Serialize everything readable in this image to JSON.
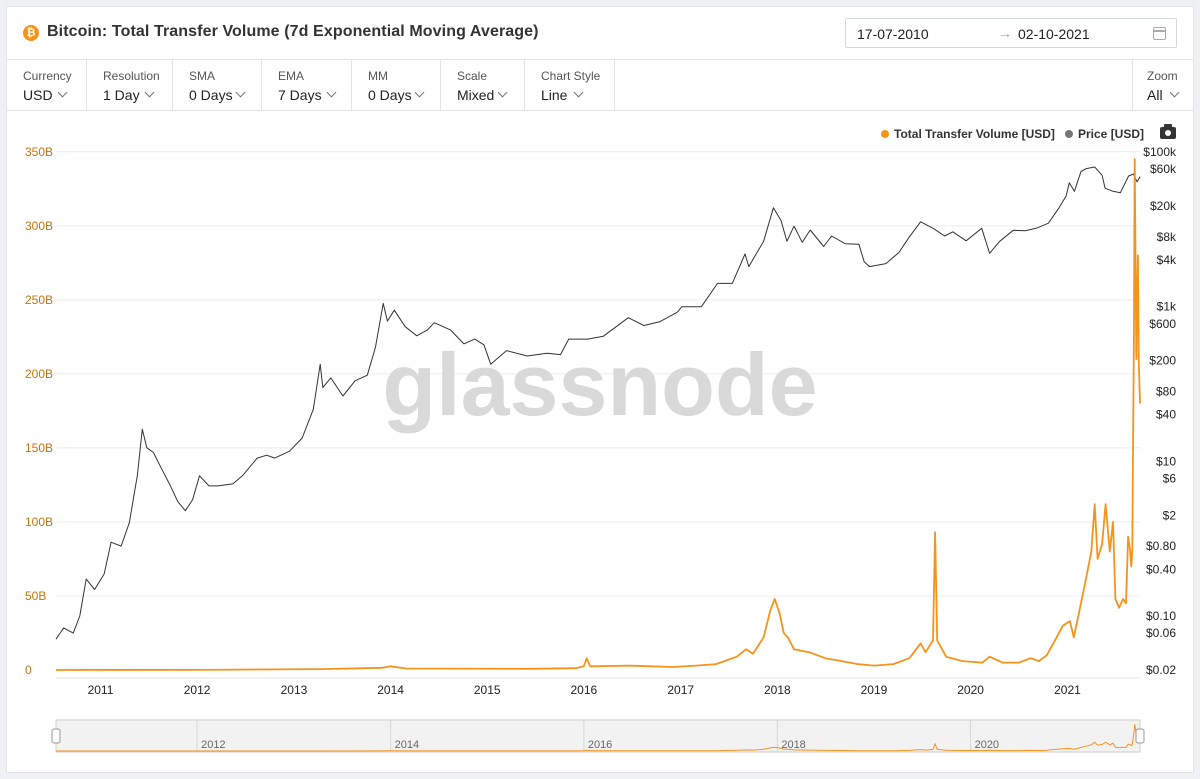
{
  "header": {
    "coin_symbol": "₿",
    "title": "Bitcoin: Total Transfer Volume (7d Exponential Moving Average)",
    "date_from": "17-07-2010",
    "date_arrow": "→",
    "date_to": "02-10-2021"
  },
  "controls": [
    {
      "label": "Currency",
      "value": "USD"
    },
    {
      "label": "Resolution",
      "value": "1 Day"
    },
    {
      "label": "SMA",
      "value": "0 Days"
    },
    {
      "label": "EMA",
      "value": "7 Days"
    },
    {
      "label": "MM",
      "value": "0 Days"
    },
    {
      "label": "Scale",
      "value": "Mixed"
    },
    {
      "label": "Chart Style",
      "value": "Line"
    }
  ],
  "zoom": {
    "label": "Zoom",
    "value": "All"
  },
  "legend": [
    {
      "name": "Total Transfer Volume [USD]",
      "color": "#f7931a"
    },
    {
      "name": "Price [USD]",
      "color": "#777777"
    }
  ],
  "watermark": "glassnode",
  "colors": {
    "volume": "#f7931a",
    "price": "#333333",
    "left_axis_text": "#c27510"
  },
  "chart_data": {
    "type": "line",
    "x_axis": {
      "ticks": [
        "2011",
        "2012",
        "2013",
        "2014",
        "2015",
        "2016",
        "2017",
        "2018",
        "2019",
        "2020",
        "2021"
      ],
      "range": [
        "2010-07-17",
        "2021-10-02"
      ]
    },
    "y_left": {
      "label": "Total Transfer Volume [USD]",
      "scale": "linear",
      "ticks": [
        "0",
        "50B",
        "100B",
        "150B",
        "200B",
        "250B",
        "300B",
        "350B"
      ],
      "range": [
        0,
        360
      ]
    },
    "y_right": {
      "label": "Price [USD]",
      "scale": "log",
      "ticks": [
        "$0.02",
        "$0.06",
        "$0.10",
        "$0.40",
        "$0.80",
        "$2",
        "$6",
        "$10",
        "$40",
        "$80",
        "$200",
        "$600",
        "$1k",
        "$4k",
        "$8k",
        "$20k",
        "$60k",
        "$100k"
      ]
    },
    "series": [
      {
        "name": "Price [USD]",
        "axis": "right",
        "points": [
          [
            "2010-07-17",
            0.05
          ],
          [
            "2010-08-15",
            0.07
          ],
          [
            "2010-09-20",
            0.06
          ],
          [
            "2010-10-15",
            0.1
          ],
          [
            "2010-11-08",
            0.3
          ],
          [
            "2010-12-10",
            0.22
          ],
          [
            "2011-01-15",
            0.35
          ],
          [
            "2011-02-10",
            0.9
          ],
          [
            "2011-03-20",
            0.8
          ],
          [
            "2011-04-20",
            1.6
          ],
          [
            "2011-05-20",
            6.5
          ],
          [
            "2011-06-08",
            26
          ],
          [
            "2011-06-25",
            15
          ],
          [
            "2011-07-20",
            13
          ],
          [
            "2011-08-20",
            8
          ],
          [
            "2011-09-20",
            5
          ],
          [
            "2011-10-20",
            3
          ],
          [
            "2011-11-18",
            2.3
          ],
          [
            "2011-12-15",
            3.2
          ],
          [
            "2012-01-10",
            6.5
          ],
          [
            "2012-02-15",
            4.8
          ],
          [
            "2012-03-20",
            4.8
          ],
          [
            "2012-05-15",
            5.1
          ],
          [
            "2012-06-20",
            6.5
          ],
          [
            "2012-08-15",
            11
          ],
          [
            "2012-09-20",
            12
          ],
          [
            "2012-10-20",
            11
          ],
          [
            "2012-12-15",
            13.5
          ],
          [
            "2013-02-01",
            20
          ],
          [
            "2013-03-15",
            47
          ],
          [
            "2013-04-10",
            180
          ],
          [
            "2013-04-20",
            90
          ],
          [
            "2013-05-20",
            120
          ],
          [
            "2013-07-05",
            70
          ],
          [
            "2013-08-20",
            110
          ],
          [
            "2013-10-05",
            130
          ],
          [
            "2013-11-05",
            300
          ],
          [
            "2013-12-04",
            1100
          ],
          [
            "2013-12-20",
            650
          ],
          [
            "2014-01-15",
            900
          ],
          [
            "2014-02-25",
            550
          ],
          [
            "2014-04-10",
            420
          ],
          [
            "2014-05-20",
            500
          ],
          [
            "2014-06-15",
            620
          ],
          [
            "2014-08-15",
            500
          ],
          [
            "2014-10-05",
            330
          ],
          [
            "2014-11-15",
            380
          ],
          [
            "2014-12-20",
            320
          ],
          [
            "2015-01-14",
            180
          ],
          [
            "2015-03-15",
            270
          ],
          [
            "2015-06-01",
            230
          ],
          [
            "2015-08-15",
            250
          ],
          [
            "2015-10-05",
            240
          ],
          [
            "2015-11-05",
            380
          ],
          [
            "2016-01-15",
            380
          ],
          [
            "2016-03-15",
            415
          ],
          [
            "2016-06-17",
            720
          ],
          [
            "2016-08-15",
            570
          ],
          [
            "2016-10-15",
            640
          ],
          [
            "2016-12-20",
            850
          ],
          [
            "2017-01-05",
            1000
          ],
          [
            "2017-03-20",
            1000
          ],
          [
            "2017-05-20",
            2000
          ],
          [
            "2017-07-15",
            2000
          ],
          [
            "2017-09-01",
            4800
          ],
          [
            "2017-09-15",
            3300
          ],
          [
            "2017-11-10",
            7000
          ],
          [
            "2017-12-17",
            19000
          ],
          [
            "2018-01-15",
            13000
          ],
          [
            "2018-02-06",
            7000
          ],
          [
            "2018-03-05",
            11000
          ],
          [
            "2018-04-05",
            6800
          ],
          [
            "2018-05-05",
            9800
          ],
          [
            "2018-06-25",
            6000
          ],
          [
            "2018-07-25",
            8200
          ],
          [
            "2018-09-15",
            6500
          ],
          [
            "2018-11-05",
            6400
          ],
          [
            "2018-11-25",
            3800
          ],
          [
            "2018-12-15",
            3300
          ],
          [
            "2019-02-15",
            3600
          ],
          [
            "2019-04-05",
            5000
          ],
          [
            "2019-05-15",
            8000
          ],
          [
            "2019-06-26",
            12500
          ],
          [
            "2019-08-15",
            10200
          ],
          [
            "2019-09-25",
            8200
          ],
          [
            "2019-10-26",
            9300
          ],
          [
            "2019-12-15",
            7100
          ],
          [
            "2020-02-12",
            10300
          ],
          [
            "2020-03-13",
            4900
          ],
          [
            "2020-04-20",
            7000
          ],
          [
            "2020-06-10",
            9700
          ],
          [
            "2020-07-25",
            9600
          ],
          [
            "2020-09-05",
            10300
          ],
          [
            "2020-10-21",
            12000
          ],
          [
            "2020-11-30",
            19000
          ],
          [
            "2020-12-27",
            27000
          ],
          [
            "2021-01-08",
            40000
          ],
          [
            "2021-01-27",
            31000
          ],
          [
            "2021-02-21",
            56000
          ],
          [
            "2021-03-13",
            61000
          ],
          [
            "2021-04-14",
            64000
          ],
          [
            "2021-05-12",
            50000
          ],
          [
            "2021-05-23",
            34000
          ],
          [
            "2021-06-22",
            31000
          ],
          [
            "2021-07-20",
            29800
          ],
          [
            "2021-08-20",
            49000
          ],
          [
            "2021-09-07",
            52000
          ],
          [
            "2021-09-21",
            41000
          ],
          [
            "2021-10-02",
            48000
          ]
        ]
      },
      {
        "name": "Total Transfer Volume [USD]",
        "axis": "left",
        "unit": "B",
        "points": [
          [
            "2010-07-17",
            0
          ],
          [
            "2012-01-01",
            0.1
          ],
          [
            "2013-04-10",
            0.6
          ],
          [
            "2013-12-01",
            1.5
          ],
          [
            "2014-01-01",
            2.5
          ],
          [
            "2014-03-01",
            1.0
          ],
          [
            "2015-06-01",
            0.8
          ],
          [
            "2015-12-01",
            1.2
          ],
          [
            "2016-01-01",
            2.5
          ],
          [
            "2016-01-12",
            8
          ],
          [
            "2016-01-25",
            2.5
          ],
          [
            "2016-06-20",
            3
          ],
          [
            "2016-12-01",
            2
          ],
          [
            "2017-03-01",
            3
          ],
          [
            "2017-05-15",
            4
          ],
          [
            "2017-06-15",
            6
          ],
          [
            "2017-08-01",
            9
          ],
          [
            "2017-09-05",
            14
          ],
          [
            "2017-10-01",
            11
          ],
          [
            "2017-11-10",
            22
          ],
          [
            "2017-12-05",
            40
          ],
          [
            "2017-12-22",
            48
          ],
          [
            "2018-01-10",
            38
          ],
          [
            "2018-01-25",
            25
          ],
          [
            "2018-02-10",
            22
          ],
          [
            "2018-03-05",
            14
          ],
          [
            "2018-05-01",
            12
          ],
          [
            "2018-07-01",
            8
          ],
          [
            "2018-09-01",
            6
          ],
          [
            "2018-11-01",
            4
          ],
          [
            "2019-01-01",
            3
          ],
          [
            "2019-03-15",
            4
          ],
          [
            "2019-05-15",
            8
          ],
          [
            "2019-06-26",
            18
          ],
          [
            "2019-07-15",
            12
          ],
          [
            "2019-08-12",
            20
          ],
          [
            "2019-08-20",
            93
          ],
          [
            "2019-08-28",
            20
          ],
          [
            "2019-10-01",
            9
          ],
          [
            "2019-12-01",
            6
          ],
          [
            "2020-02-15",
            5
          ],
          [
            "2020-03-13",
            9
          ],
          [
            "2020-05-01",
            5
          ],
          [
            "2020-07-01",
            5
          ],
          [
            "2020-08-15",
            8
          ],
          [
            "2020-09-15",
            6
          ],
          [
            "2020-10-15",
            10
          ],
          [
            "2020-11-15",
            20
          ],
          [
            "2020-12-15",
            30
          ],
          [
            "2021-01-10",
            33
          ],
          [
            "2021-01-25",
            22
          ],
          [
            "2021-02-15",
            40
          ],
          [
            "2021-03-10",
            60
          ],
          [
            "2021-04-01",
            80
          ],
          [
            "2021-04-14",
            112
          ],
          [
            "2021-04-25",
            75
          ],
          [
            "2021-05-12",
            85
          ],
          [
            "2021-05-25",
            112
          ],
          [
            "2021-06-10",
            80
          ],
          [
            "2021-06-22",
            100
          ],
          [
            "2021-07-01",
            48
          ],
          [
            "2021-07-15",
            42
          ],
          [
            "2021-07-30",
            48
          ],
          [
            "2021-08-10",
            45
          ],
          [
            "2021-08-18",
            90
          ],
          [
            "2021-08-25",
            82
          ],
          [
            "2021-08-30",
            70
          ],
          [
            "2021-09-03",
            82
          ],
          [
            "2021-09-06",
            155
          ],
          [
            "2021-09-09",
            225
          ],
          [
            "2021-09-12",
            345
          ],
          [
            "2021-09-15",
            280
          ],
          [
            "2021-09-18",
            210
          ],
          [
            "2021-09-21",
            250
          ],
          [
            "2021-09-24",
            280
          ],
          [
            "2021-09-27",
            210
          ],
          [
            "2021-10-02",
            180
          ]
        ]
      }
    ]
  },
  "navigator": {
    "labels": [
      "2012",
      "2014",
      "2016",
      "2018",
      "2020"
    ]
  }
}
